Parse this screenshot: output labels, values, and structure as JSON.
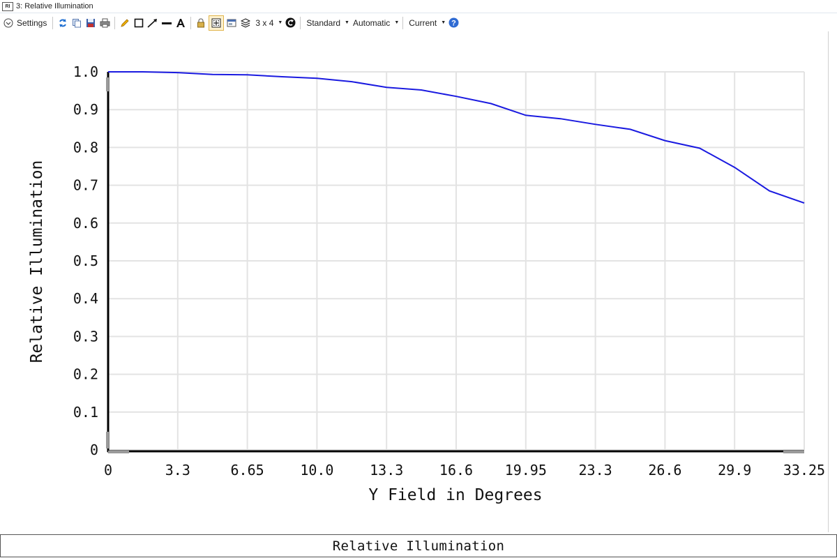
{
  "window": {
    "title": "3: Relative Illumination"
  },
  "toolbar": {
    "settings_label": "Settings",
    "layout_label": "3 x 4",
    "standard_label": "Standard",
    "automatic_label": "Automatic",
    "current_label": "Current"
  },
  "status": {
    "caption": "Relative Illumination"
  },
  "colors": {
    "line": "#1a1ae0",
    "grid": "#e3e3e3",
    "axis": "#000000"
  },
  "chart_data": {
    "type": "line",
    "xlabel": "Y Field in Degrees",
    "ylabel": "Relative Illumination",
    "xlim": [
      0,
      33.25
    ],
    "ylim": [
      0,
      1.0
    ],
    "x_ticks": [
      "0",
      "3.3",
      "6.65",
      "10.0",
      "13.3",
      "16.6",
      "19.95",
      "23.3",
      "26.6",
      "29.9",
      "33.25"
    ],
    "y_ticks": [
      "0",
      "0.1",
      "0.2",
      "0.3",
      "0.4",
      "0.5",
      "0.6",
      "0.7",
      "0.8",
      "0.9",
      "1.0"
    ],
    "grid": true,
    "series": [
      {
        "x": [
          0,
          1.66,
          3.33,
          4.99,
          6.65,
          8.31,
          9.98,
          11.64,
          13.3,
          14.96,
          16.63,
          18.29,
          19.95,
          21.61,
          23.28,
          24.94,
          26.6,
          28.26,
          29.93,
          31.59,
          33.25
        ],
        "y": [
          1.0,
          1.0,
          0.998,
          0.993,
          0.992,
          0.987,
          0.983,
          0.974,
          0.959,
          0.952,
          0.935,
          0.916,
          0.885,
          0.876,
          0.861,
          0.848,
          0.818,
          0.798,
          0.747,
          0.685,
          0.653
        ]
      }
    ]
  }
}
